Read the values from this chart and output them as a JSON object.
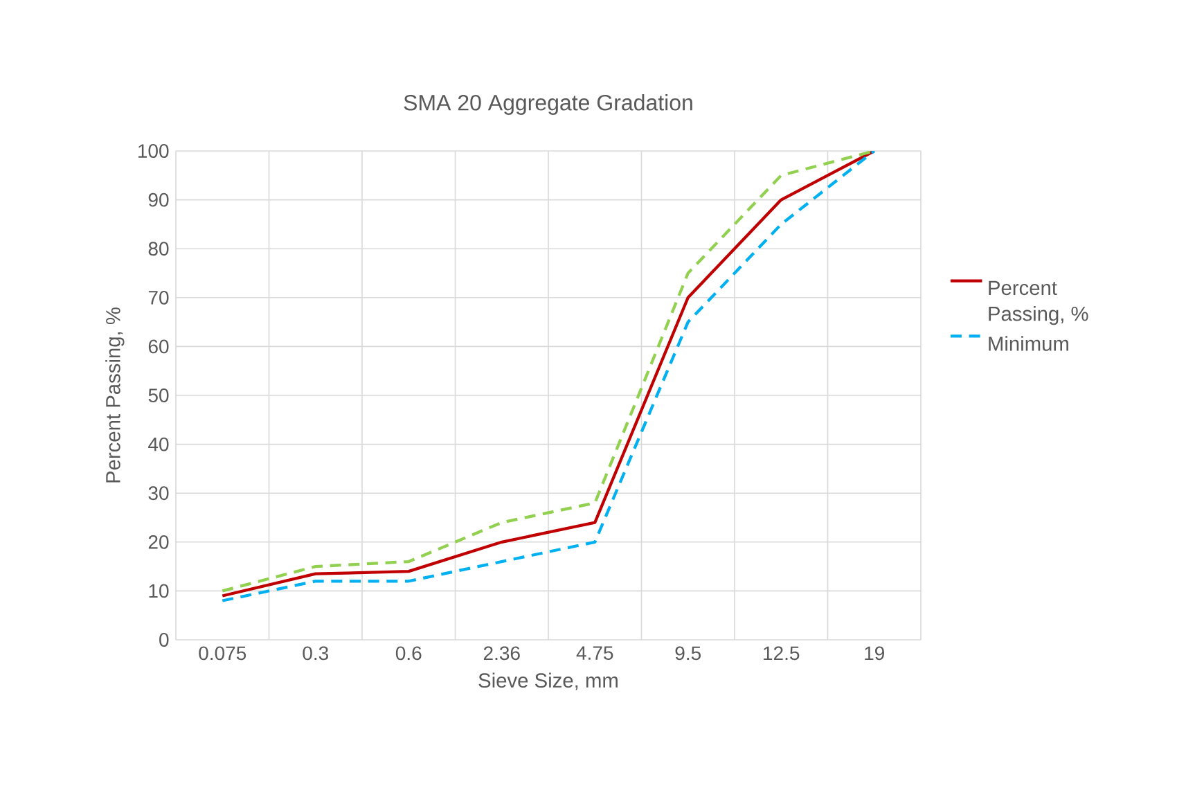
{
  "chart_data": {
    "type": "line",
    "title": "SMA 20 Aggregate Gradation",
    "xlabel": "Sieve Size, mm",
    "ylabel": "Percent Passing, %",
    "categories": [
      "0.075",
      "0.3",
      "0.6",
      "2.36",
      "4.75",
      "9.5",
      "12.5",
      "19"
    ],
    "series": [
      {
        "name": "Percent Passing, %",
        "color": "#c00000",
        "line_style": "solid",
        "values": [
          9,
          13.5,
          14,
          20,
          24,
          70,
          90,
          100
        ]
      },
      {
        "name": "Minimum",
        "color": "#00b0f0",
        "line_style": "dashed",
        "values": [
          8,
          12,
          12,
          16,
          20,
          65,
          85,
          100
        ]
      },
      {
        "color": "#92d050",
        "line_style": "dashed",
        "values": [
          10,
          15,
          16,
          24,
          28,
          75,
          95,
          100
        ]
      }
    ],
    "ylim": [
      0,
      100
    ],
    "yticks": [
      0,
      10,
      20,
      30,
      40,
      50,
      60,
      70,
      80,
      90,
      100
    ],
    "grid": true,
    "legend": "right",
    "marker": "none"
  }
}
